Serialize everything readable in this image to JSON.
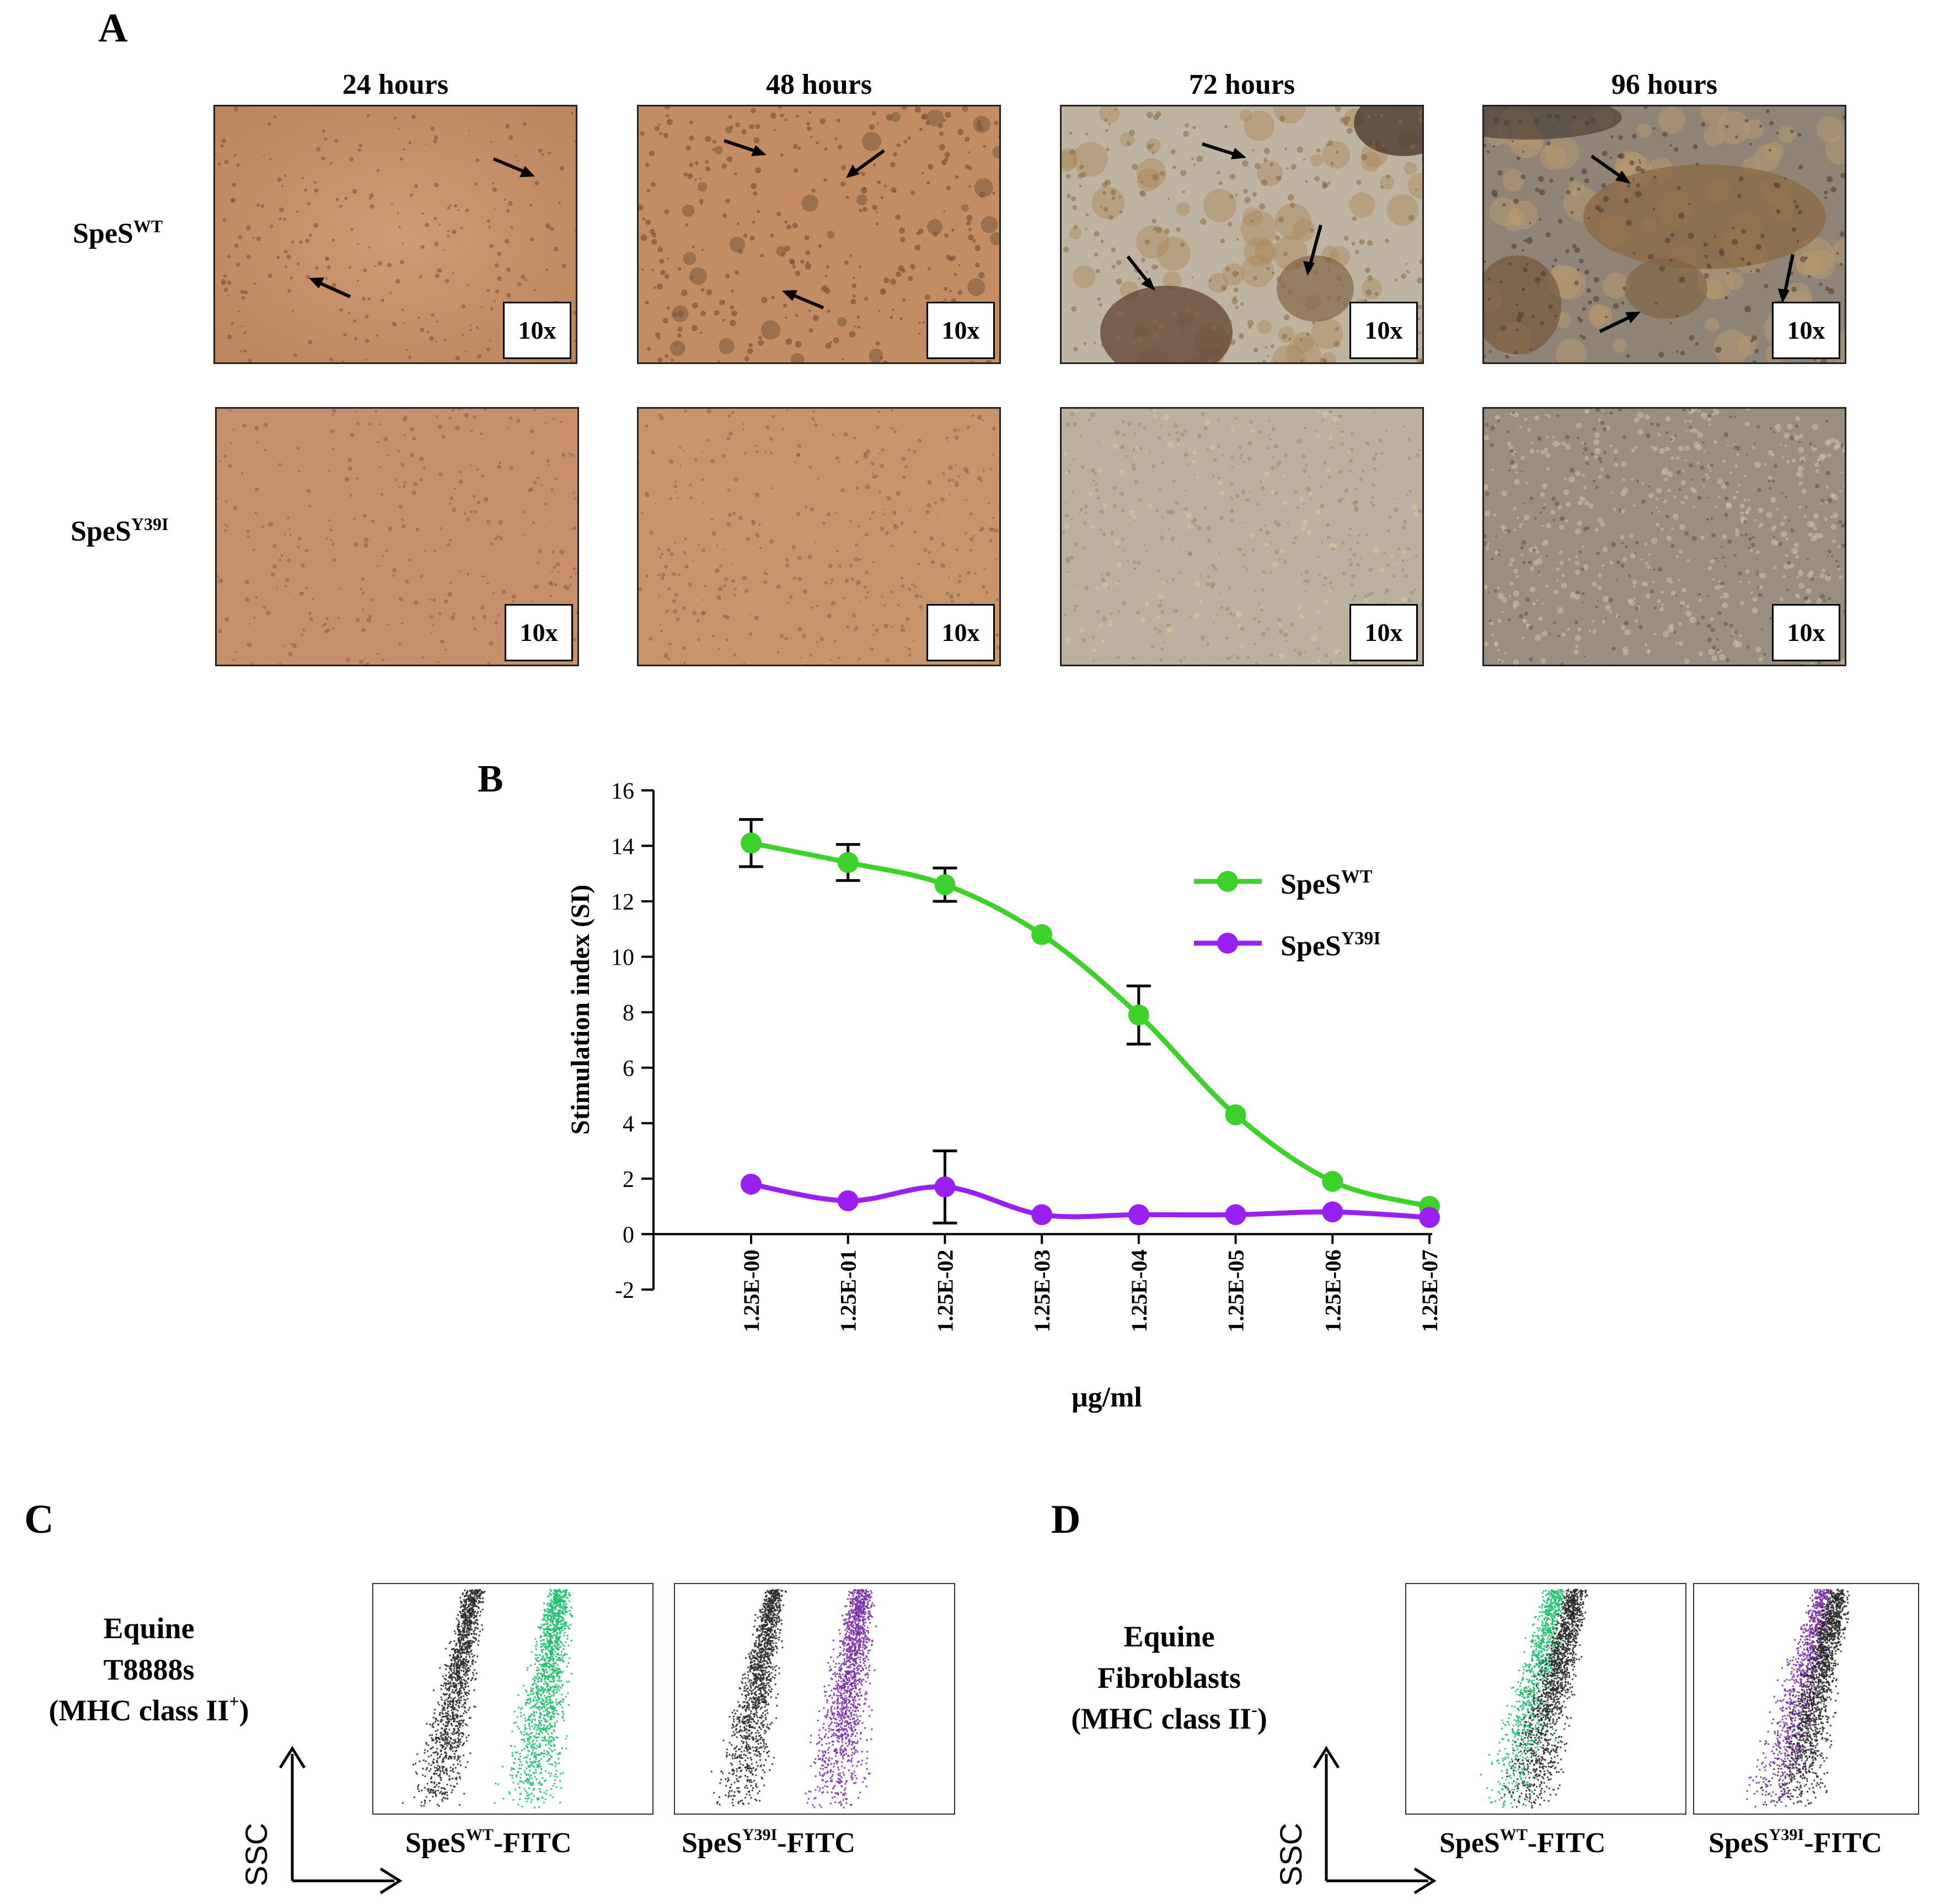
{
  "panel_a": {
    "letter": "A",
    "time_points": [
      "24 hours",
      "48 hours",
      "72 hours",
      "96 hours"
    ],
    "rows": [
      {
        "label_base": "SpeS",
        "label_sup": "WT"
      },
      {
        "label_base": "SpeS",
        "label_sup": "Y39I"
      }
    ],
    "magnification": "10x"
  },
  "panel_b": {
    "letter": "B"
  },
  "chart_data": {
    "type": "line",
    "title": "",
    "xlabel": "μg/ml",
    "ylabel": "Stimulation index (SI)",
    "categories": [
      "1.25E-00",
      "1.25E-01",
      "1.25E-02",
      "1.25E-03",
      "1.25E-04",
      "1.25E-05",
      "1.25E-06",
      "1.25E-07"
    ],
    "ylim": [
      -2,
      16
    ],
    "yticks": [
      -2,
      0,
      2,
      4,
      6,
      8,
      10,
      12,
      14,
      16
    ],
    "legend_position": "top-right",
    "series": [
      {
        "name_base": "SpeS",
        "name_sup": "WT",
        "color": "#3cd22a",
        "values": [
          14.1,
          13.4,
          12.6,
          10.8,
          7.9,
          4.3,
          1.9,
          1.0
        ],
        "errors": [
          0.85,
          0.65,
          0.6,
          0,
          1.05,
          0,
          0,
          0
        ]
      },
      {
        "name_base": "SpeS",
        "name_sup": "Y39I",
        "color": "#9a1ff2",
        "values": [
          1.8,
          1.2,
          1.7,
          0.7,
          0.7,
          0.7,
          0.8,
          0.6
        ],
        "errors": [
          0,
          0,
          1.3,
          0,
          0,
          0,
          0,
          0
        ]
      }
    ]
  },
  "panel_c": {
    "letter": "C",
    "cell_lines": [
      "Equine",
      "T8888s"
    ],
    "mhc_base": "(MHC class II",
    "mhc_sup": "+",
    "mhc_end": ")",
    "ssc": "SSC",
    "axis1_base": "SpeS",
    "axis1_sup": "WT",
    "axis1_end": "-FITC",
    "axis2_base": "SpeS",
    "axis2_sup": "Y39I",
    "axis2_end": "-FITC"
  },
  "panel_d": {
    "letter": "D",
    "cell_lines": [
      "Equine",
      "Fibroblasts"
    ],
    "mhc_base": "(MHC class II",
    "mhc_sup": "-",
    "mhc_end": ")",
    "ssc": "SSC",
    "axis1_base": "SpeS",
    "axis1_sup": "WT",
    "axis1_end": "-FITC",
    "axis2_base": "SpeS",
    "axis2_sup": "Y39I",
    "axis2_end": "-FITC"
  },
  "colors": {
    "wt": "#3cd22a",
    "y39i": "#9a1ff2",
    "facs_green": "#1fbf6e",
    "facs_purple": "#7b2fa8",
    "facs_dark": "#2b2b2b"
  }
}
